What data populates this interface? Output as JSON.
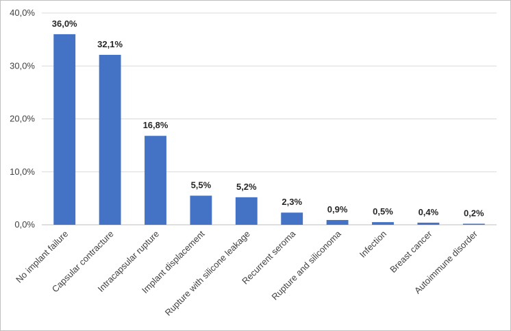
{
  "chart_data": {
    "type": "bar",
    "categories": [
      "No implant failure",
      "Capsular contracture",
      "Intracapsular rupture",
      "Implant displacement",
      "Rupture with silicone leakage",
      "Recurrent seroma",
      "Rupture and siliconoma",
      "Infection",
      "Breast cancer",
      "Autoimmune disorder"
    ],
    "values": [
      36.0,
      32.1,
      16.8,
      5.5,
      5.2,
      2.3,
      0.9,
      0.5,
      0.4,
      0.2
    ],
    "value_labels": [
      "36,0%",
      "32,1%",
      "16,8%",
      "5,5%",
      "5,2%",
      "2,3%",
      "0,9%",
      "0,5%",
      "0,4%",
      "0,2%"
    ],
    "y_ticks": [
      0,
      10,
      20,
      30,
      40
    ],
    "y_tick_labels": [
      "0,0%",
      "10,0%",
      "20,0%",
      "30,0%",
      "40,0%"
    ],
    "ylim": [
      0,
      40
    ],
    "grid": true,
    "bar_color": "#4472c4",
    "title": "",
    "xlabel": "",
    "ylabel": ""
  }
}
